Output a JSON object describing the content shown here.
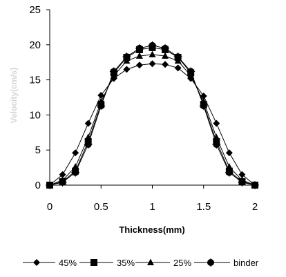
{
  "chart_data": {
    "type": "line",
    "xlabel": "Thickness(mm)",
    "ylabel": "Velocity(cm/s)",
    "xlim": [
      0,
      2
    ],
    "ylim": [
      0,
      25
    ],
    "xticks": [
      "0",
      "0.5",
      "1",
      "1.5",
      "2"
    ],
    "yticks": [
      "0",
      "5",
      "10",
      "15",
      "20",
      "25"
    ],
    "grid": false,
    "legend_position": "bottom",
    "x": [
      0,
      0.125,
      0.25,
      0.375,
      0.5,
      0.625,
      0.75,
      0.875,
      1.0,
      1.125,
      1.25,
      1.375,
      1.5,
      1.625,
      1.75,
      1.875,
      2.0
    ],
    "series": [
      {
        "name": "45%",
        "marker": "diamond",
        "values": [
          0,
          1.5,
          4.6,
          8.8,
          12.8,
          15.2,
          16.5,
          17.1,
          17.3,
          17.2,
          16.7,
          15.2,
          12.7,
          8.8,
          4.6,
          1.5,
          0
        ]
      },
      {
        "name": "35%",
        "marker": "square",
        "values": [
          0,
          0.5,
          2.0,
          6.2,
          11.5,
          16.0,
          18.2,
          19.3,
          19.6,
          19.3,
          18.2,
          16.0,
          11.5,
          6.2,
          2.0,
          0.5,
          0
        ]
      },
      {
        "name": "25%",
        "marker": "triangle",
        "values": [
          0,
          0.7,
          2.6,
          6.8,
          11.9,
          15.6,
          17.7,
          18.4,
          18.6,
          18.4,
          17.7,
          15.6,
          11.9,
          6.8,
          2.6,
          0.7,
          0
        ]
      },
      {
        "name": "binder",
        "marker": "circle-cross",
        "values": [
          0,
          0.4,
          1.8,
          5.8,
          11.3,
          16.2,
          18.3,
          19.5,
          19.9,
          19.5,
          18.3,
          16.2,
          11.3,
          5.8,
          1.8,
          0.4,
          0
        ]
      }
    ]
  }
}
